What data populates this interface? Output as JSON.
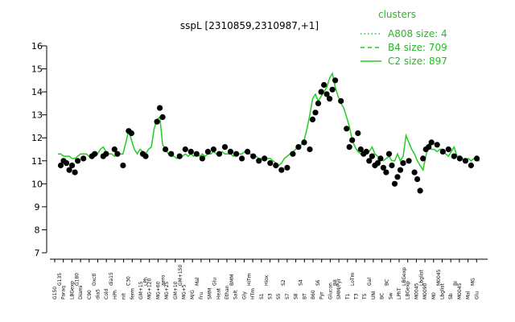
{
  "chart_data": {
    "type": "line",
    "title": "sspL [2310859,2310987,+1]",
    "xlabel": "",
    "ylabel": "",
    "ylim": [
      7,
      16
    ],
    "yticks": [
      7,
      8,
      9,
      10,
      11,
      12,
      13,
      14,
      15,
      16
    ],
    "grid": false,
    "legend_position": "top-right",
    "legend": {
      "title": "clusters",
      "entries": [
        {
          "label": "A808 size: 4",
          "style": "dotted"
        },
        {
          "label": "B4 size: 709",
          "style": "dashed"
        },
        {
          "label": "C2 size: 897",
          "style": "solid"
        }
      ]
    },
    "colors": {
      "line": "#22cc22",
      "points": "#000000",
      "legend": "#22bb22"
    },
    "x_tick_labels_lower": [
      "G150",
      "Paraq",
      "LBGexp",
      "Diami",
      "C90",
      "dia5",
      "Cold",
      "HPh",
      "nit",
      "ferm",
      "GM+15",
      "MG+120",
      "MG+60",
      "MG+25",
      "GM+10",
      "MG+5",
      "M/G",
      "Fru",
      "SMM",
      "Heat",
      "Ethan",
      "Salt",
      "Gly",
      "HTm",
      "S1",
      "S3",
      "S5",
      "S7",
      "S8",
      "BT",
      "B60",
      "Pyr",
      "Glucon",
      "SMM/Pyr",
      "T1",
      "T3",
      "T5",
      "UNI",
      "BC",
      "Sw",
      "LPhT",
      "LBGexp",
      "M0045",
      "M0090",
      "M0",
      "Lbglist",
      "Sb",
      "M0045",
      "Mal",
      "Glu"
    ],
    "x_tick_labels_upper": [
      "G135",
      "G180",
      "Oxctl",
      "dia15",
      "C30",
      "LPh",
      "aero",
      "GM+150",
      "Mal",
      "Glu",
      "BMM",
      "HiTm",
      "Hiox",
      "S2",
      "S4",
      "S6",
      "B8",
      "LoTm",
      "Gal",
      "BC",
      "LBGexp",
      "Lbglist",
      "M0045",
      "BI",
      "MG"
    ],
    "series": [
      {
        "name": "C2 size: 897",
        "x": [
          1,
          2,
          3,
          4,
          5,
          6,
          7,
          8,
          9,
          10,
          11,
          12,
          13,
          14,
          15,
          16,
          17,
          18,
          19,
          20,
          21,
          22,
          23,
          24,
          25,
          26,
          27,
          28,
          29,
          30,
          31,
          32,
          33,
          34,
          35,
          36,
          37,
          38,
          39,
          40,
          41,
          42,
          43,
          44,
          45,
          46,
          47,
          48,
          49,
          50,
          51,
          52,
          53,
          54,
          55,
          56,
          57,
          58,
          59,
          60,
          61,
          62,
          63,
          64,
          65,
          66,
          67,
          68,
          69,
          70,
          71,
          72,
          73,
          74,
          75,
          76,
          77,
          78,
          79,
          80,
          81,
          82,
          83,
          84,
          85,
          86,
          87,
          88,
          89,
          90,
          91,
          92,
          93,
          94,
          95,
          96,
          97,
          98,
          99,
          100,
          101,
          102,
          103,
          104,
          105,
          106,
          107,
          108,
          109,
          110,
          111,
          112,
          113,
          114,
          115,
          116,
          117,
          118,
          119,
          120,
          121,
          122,
          123,
          124,
          125,
          126,
          127,
          128,
          129,
          130,
          131,
          132,
          133,
          134,
          135,
          136,
          137,
          138,
          139,
          140,
          141,
          142,
          143,
          144,
          145,
          146,
          147,
          148,
          149,
          150
        ],
        "y": [
          11.3,
          11.3,
          11.2,
          11.2,
          11.2,
          11.1,
          11.1,
          11.2,
          11.3,
          11.3,
          11.3,
          11.2,
          11.2,
          11.2,
          11.3,
          11.5,
          11.6,
          11.4,
          11.3,
          11.3,
          11.2,
          11.3,
          11.3,
          11.3,
          11.8,
          12.3,
          11.9,
          11.5,
          11.3,
          11.5,
          11.4,
          11.3,
          11.5,
          11.6,
          12.4,
          12.8,
          12.9,
          11.7,
          11.5,
          11.3,
          11.2,
          11.2,
          11.1,
          11.2,
          11.2,
          11.3,
          11.2,
          11.3,
          11.2,
          11.3,
          11.2,
          11.3,
          11.2,
          11.3,
          11.3,
          11.4,
          11.3,
          11.3,
          11.4,
          11.3,
          11.3,
          11.3,
          11.2,
          11.3,
          11.3,
          11.3,
          11.4,
          11.3,
          11.3,
          11.2,
          11.2,
          11.1,
          11.1,
          11.0,
          11.1,
          11.1,
          11.0,
          10.9,
          10.8,
          10.9,
          11.1,
          11.2,
          11.3,
          11.4,
          11.5,
          11.6,
          11.7,
          11.9,
          12.4,
          13.0,
          13.7,
          13.9,
          13.6,
          13.8,
          14.0,
          14.2,
          14.6,
          14.8,
          14.2,
          13.8,
          13.5,
          13.3,
          12.9,
          12.5,
          11.9,
          11.6,
          11.4,
          11.3,
          11.4,
          11.5,
          11.4,
          11.6,
          11.3,
          11.2,
          11.1,
          11.0,
          11.1,
          11.2,
          11.0,
          11.0,
          11.3,
          11.0,
          11.2,
          12.1,
          11.8,
          11.5,
          11.3,
          11.0,
          10.8,
          10.6,
          11.2,
          11.7,
          11.5,
          11.5,
          11.4,
          11.5,
          11.5,
          11.3,
          11.2,
          11.4,
          11.6,
          11.2,
          11.2,
          11.1,
          11.0,
          11.1,
          11.0,
          11.1,
          11.0,
          11.0
        ]
      },
      {
        "name": "points",
        "x": [
          2,
          3,
          4,
          5,
          6,
          7,
          8,
          10,
          13,
          14,
          17,
          18,
          21,
          22,
          24,
          26,
          27,
          31,
          32,
          36,
          37,
          38,
          39,
          41,
          44,
          46,
          48,
          50,
          52,
          54,
          56,
          58,
          60,
          62,
          64,
          66,
          68,
          70,
          72,
          74,
          76,
          78,
          80,
          82,
          84,
          86,
          88,
          90,
          91,
          92,
          93,
          94,
          95,
          96,
          97,
          98,
          99,
          101,
          103,
          104,
          105,
          107,
          108,
          109,
          110,
          111,
          112,
          113,
          114,
          115,
          116,
          117,
          118,
          119,
          120,
          121,
          122,
          123,
          125,
          127,
          128,
          129,
          130,
          131,
          132,
          133,
          135,
          137,
          139,
          141,
          143,
          145,
          147,
          149
        ],
        "y": [
          10.8,
          11.0,
          10.9,
          10.6,
          10.8,
          10.5,
          11.0,
          11.1,
          11.2,
          11.3,
          11.2,
          11.3,
          11.5,
          11.3,
          10.8,
          12.3,
          12.2,
          11.3,
          11.2,
          12.7,
          13.3,
          12.9,
          11.5,
          11.3,
          11.2,
          11.5,
          11.4,
          11.3,
          11.1,
          11.4,
          11.5,
          11.3,
          11.6,
          11.4,
          11.3,
          11.1,
          11.4,
          11.2,
          11.0,
          11.1,
          10.9,
          10.8,
          10.6,
          10.7,
          11.3,
          11.6,
          11.8,
          11.5,
          12.8,
          13.1,
          13.5,
          14.0,
          14.3,
          13.9,
          13.7,
          14.1,
          14.5,
          13.6,
          12.4,
          11.6,
          11.9,
          12.2,
          11.5,
          11.3,
          11.4,
          11.0,
          11.2,
          10.8,
          10.9,
          11.1,
          10.7,
          10.5,
          11.3,
          10.8,
          10.0,
          10.3,
          10.6,
          10.9,
          11.0,
          10.5,
          10.2,
          9.7,
          11.1,
          11.5,
          11.6,
          11.8,
          11.7,
          11.4,
          11.5,
          11.2,
          11.1,
          11.0,
          10.8,
          11.1
        ]
      }
    ]
  }
}
